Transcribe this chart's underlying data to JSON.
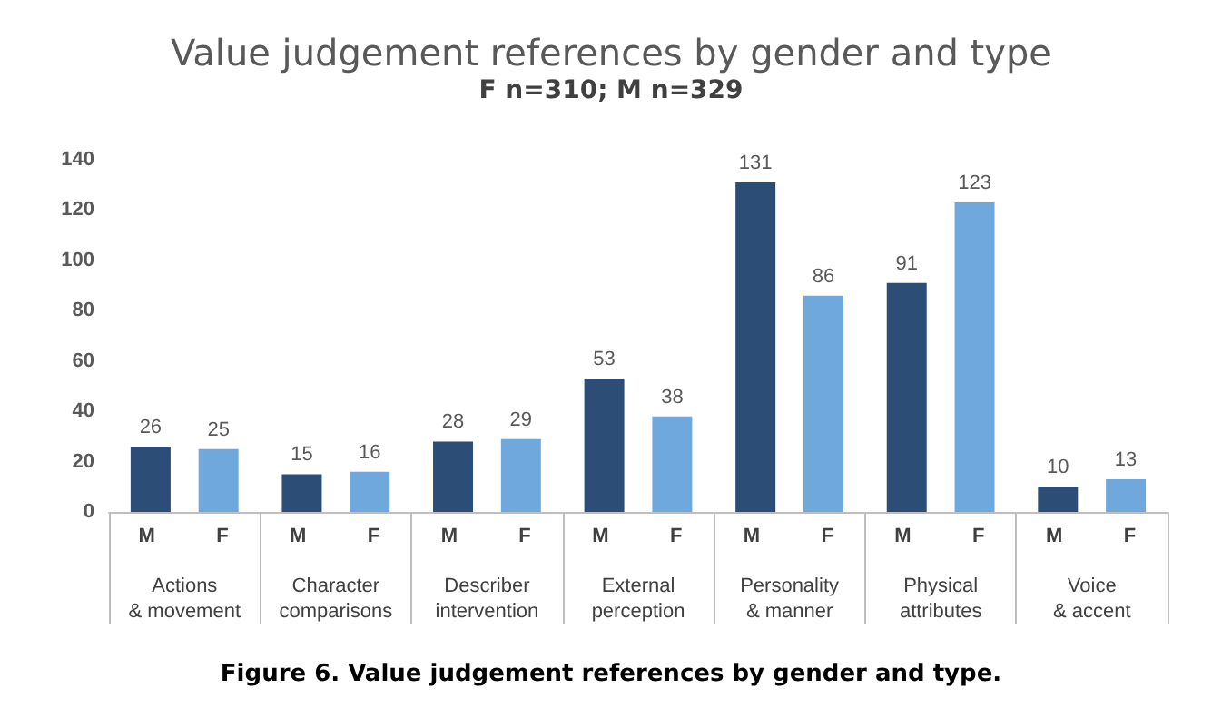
{
  "chart_data": {
    "type": "bar",
    "title": "Value judgement references by gender and type",
    "subtitle": "F n=310; M n=329",
    "categories": [
      "Actions & movement",
      "Character comparisons",
      "Describer intervention",
      "External perception",
      "Personality & manner",
      "Physical attributes",
      "Voice & accent"
    ],
    "series": [
      {
        "name": "M",
        "color": "#2c4d75",
        "values": [
          26,
          15,
          28,
          53,
          131,
          91,
          10
        ]
      },
      {
        "name": "F",
        "color": "#6fa8dc",
        "values": [
          25,
          16,
          29,
          38,
          86,
          123,
          13
        ]
      }
    ],
    "ylim": [
      0,
      140
    ],
    "yticks": [
      0,
      20,
      40,
      60,
      80,
      100,
      120,
      140
    ],
    "grid": false,
    "data_labels": true,
    "annotations": [
      "Figure 6. Value judgement references by gender and type."
    ]
  }
}
